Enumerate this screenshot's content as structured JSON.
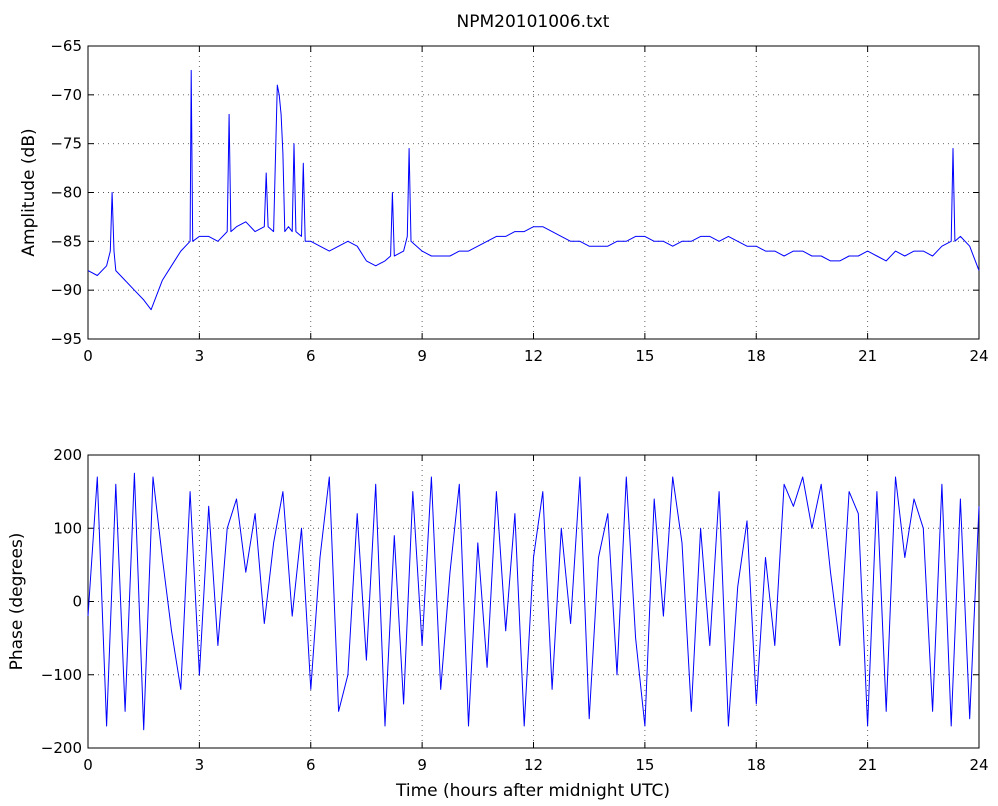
{
  "chart_data": [
    {
      "type": "line",
      "title": "NPM20101006.txt",
      "xlabel": "",
      "ylabel": "Amplitude (dB)",
      "xlim": [
        0,
        24
      ],
      "ylim": [
        -95,
        -65
      ],
      "xticks": [
        0,
        3,
        6,
        9,
        12,
        15,
        18,
        21,
        24
      ],
      "yticks": [
        -95,
        -90,
        -85,
        -80,
        -75,
        -70,
        -65
      ],
      "grid": true,
      "color": "#0000ff",
      "series": [
        {
          "x": [
            0,
            0.25,
            0.5,
            0.6,
            0.65,
            0.7,
            0.75,
            1.0,
            1.25,
            1.5,
            1.7,
            2.0,
            2.25,
            2.5,
            2.75,
            2.78,
            2.82,
            3.0,
            3.25,
            3.5,
            3.75,
            3.8,
            3.85,
            4.0,
            4.25,
            4.5,
            4.75,
            4.8,
            4.85,
            5.0,
            5.1,
            5.15,
            5.2,
            5.25,
            5.3,
            5.4,
            5.5,
            5.55,
            5.6,
            5.75,
            5.8,
            5.85,
            6.0,
            6.25,
            6.5,
            6.75,
            7.0,
            7.25,
            7.5,
            7.75,
            8.0,
            8.15,
            8.2,
            8.25,
            8.5,
            8.6,
            8.65,
            8.7,
            9.0,
            9.25,
            9.5,
            9.75,
            10.0,
            10.25,
            10.5,
            10.75,
            11.0,
            11.25,
            11.5,
            11.75,
            12.0,
            12.25,
            12.5,
            12.75,
            13.0,
            13.25,
            13.5,
            13.75,
            14.0,
            14.25,
            14.5,
            14.75,
            15.0,
            15.25,
            15.5,
            15.75,
            16.0,
            16.25,
            16.5,
            16.75,
            17.0,
            17.25,
            17.5,
            17.75,
            18.0,
            18.25,
            18.5,
            18.75,
            19.0,
            19.25,
            19.5,
            19.75,
            20.0,
            20.25,
            20.5,
            20.75,
            21.0,
            21.25,
            21.5,
            21.75,
            22.0,
            22.25,
            22.5,
            22.75,
            23.0,
            23.25,
            23.3,
            23.35,
            23.5,
            23.75,
            24.0
          ],
          "y": [
            -88,
            -88.5,
            -87.5,
            -86,
            -80,
            -86,
            -88,
            -89,
            -90,
            -91,
            -92,
            -89,
            -87.5,
            -86,
            -85,
            -67.5,
            -85,
            -84.5,
            -84.5,
            -85,
            -84,
            -72,
            -84,
            -83.5,
            -83,
            -84,
            -83.5,
            -78,
            -83.5,
            -84,
            -69,
            -70,
            -72,
            -76,
            -84,
            -83.5,
            -84,
            -75,
            -84,
            -84.5,
            -77,
            -85,
            -85,
            -85.5,
            -86,
            -85.5,
            -85,
            -85.5,
            -87,
            -87.5,
            -87,
            -86.5,
            -80,
            -86.5,
            -86,
            -84.5,
            -75.5,
            -85,
            -86,
            -86.5,
            -86.5,
            -86.5,
            -86,
            -86,
            -85.5,
            -85,
            -84.5,
            -84.5,
            -84,
            -84,
            -83.5,
            -83.5,
            -84,
            -84.5,
            -85,
            -85,
            -85.5,
            -85.5,
            -85.5,
            -85,
            -85,
            -84.5,
            -84.5,
            -85,
            -85,
            -85.5,
            -85,
            -85,
            -84.5,
            -84.5,
            -85,
            -84.5,
            -85,
            -85.5,
            -85.5,
            -86,
            -86,
            -86.5,
            -86,
            -86,
            -86.5,
            -86.5,
            -87,
            -87,
            -86.5,
            -86.5,
            -86,
            -86.5,
            -87,
            -86,
            -86.5,
            -86,
            -86,
            -86.5,
            -85.5,
            -85,
            -75.5,
            -85,
            -84.5,
            -85.5,
            -88
          ]
        }
      ]
    },
    {
      "type": "line",
      "title": "",
      "xlabel": "Time (hours after midnight UTC)",
      "ylabel": "Phase (degrees)",
      "xlim": [
        0,
        24
      ],
      "ylim": [
        -200,
        200
      ],
      "xticks": [
        0,
        3,
        6,
        9,
        12,
        15,
        18,
        21,
        24
      ],
      "yticks": [
        -200,
        -100,
        0,
        100,
        200
      ],
      "grid": true,
      "color": "#0000ff",
      "series": [
        {
          "x": [
            0,
            0.25,
            0.5,
            0.75,
            1.0,
            1.25,
            1.5,
            1.75,
            2.0,
            2.25,
            2.5,
            2.75,
            3.0,
            3.25,
            3.5,
            3.75,
            4.0,
            4.25,
            4.5,
            4.75,
            5.0,
            5.25,
            5.5,
            5.75,
            6.0,
            6.25,
            6.5,
            6.75,
            7.0,
            7.25,
            7.5,
            7.75,
            8.0,
            8.25,
            8.5,
            8.75,
            9.0,
            9.25,
            9.5,
            9.75,
            10.0,
            10.25,
            10.5,
            10.75,
            11.0,
            11.25,
            11.5,
            11.75,
            12.0,
            12.25,
            12.5,
            12.75,
            13.0,
            13.25,
            13.5,
            13.75,
            14.0,
            14.25,
            14.5,
            14.75,
            15.0,
            15.25,
            15.5,
            15.75,
            16.0,
            16.25,
            16.5,
            16.75,
            17.0,
            17.25,
            17.5,
            17.75,
            18.0,
            18.25,
            18.5,
            18.75,
            19.0,
            19.25,
            19.5,
            19.75,
            20.0,
            20.25,
            20.5,
            20.75,
            21.0,
            21.25,
            21.5,
            21.75,
            22.0,
            22.25,
            22.5,
            22.75,
            23.0,
            23.25,
            23.5,
            23.75,
            24.0
          ],
          "y": [
            -20,
            170,
            -170,
            160,
            -150,
            175,
            -175,
            170,
            60,
            -40,
            -120,
            150,
            -100,
            130,
            -60,
            100,
            140,
            40,
            120,
            -30,
            80,
            150,
            -20,
            100,
            -120,
            60,
            170,
            -150,
            -100,
            120,
            -80,
            160,
            -170,
            90,
            -140,
            150,
            -60,
            170,
            -120,
            40,
            160,
            -170,
            80,
            -90,
            150,
            -40,
            120,
            -170,
            60,
            150,
            -120,
            100,
            -30,
            170,
            -160,
            60,
            120,
            -100,
            170,
            -50,
            -170,
            140,
            -20,
            170,
            80,
            -150,
            100,
            -60,
            150,
            -170,
            20,
            110,
            -140,
            60,
            -60,
            160,
            130,
            170,
            100,
            160,
            40,
            -60,
            150,
            120,
            -170,
            150,
            -150,
            170,
            60,
            140,
            100,
            -150,
            160,
            -170,
            140,
            -160,
            130
          ]
        }
      ]
    }
  ]
}
